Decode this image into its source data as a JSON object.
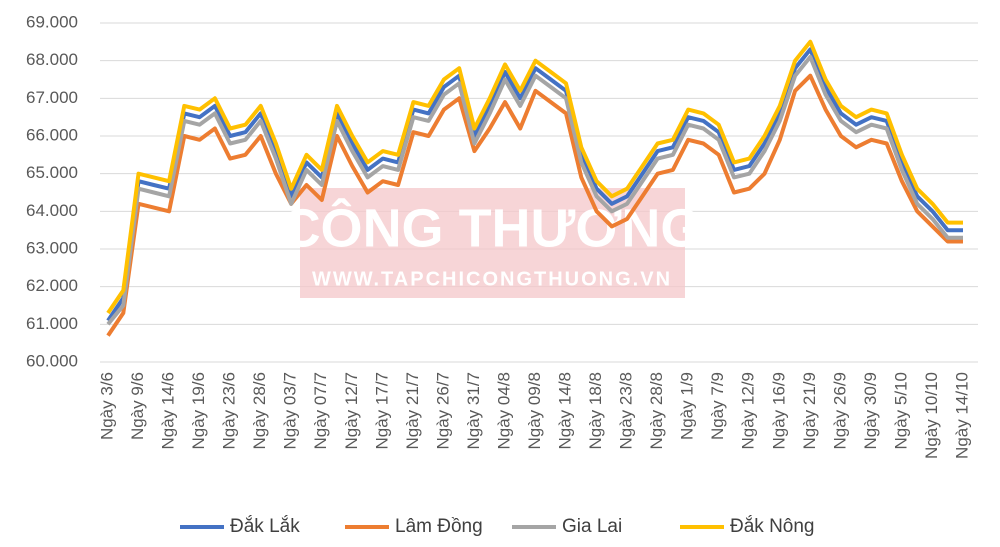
{
  "chart_data": {
    "type": "line",
    "watermark": {
      "title": "CÔNG THƯƠNG",
      "url": "WWW.TAPCHICONGTHUONG.VN"
    },
    "categories": [
      "Ngày 3/6",
      null,
      "Ngày 9/6",
      null,
      "Ngày 14/6",
      null,
      "Ngày 19/6",
      null,
      "Ngày 23/6",
      null,
      "Ngày 28/6",
      null,
      "Ngày 03/7",
      null,
      "Ngày 07/7",
      null,
      "Ngày 12/7",
      null,
      "Ngày 17/7",
      null,
      "Ngày 21/7",
      null,
      "Ngày 26/7",
      null,
      "Ngày 31/7",
      null,
      "Ngày 04/8",
      null,
      "Ngày 09/8",
      null,
      "Ngày 14/8",
      null,
      "Ngày 18/8",
      null,
      "Ngày 23/8",
      null,
      "Ngày 28/8",
      null,
      "Ngày 1/9",
      null,
      "Ngày 7/9",
      null,
      "Ngày 12/9",
      null,
      "Ngày 16/9",
      null,
      "Ngày 21/9",
      null,
      "Ngày 26/9",
      null,
      "Ngày 30/9",
      null,
      "Ngày 5/10",
      null,
      "Ngày 10/10",
      null,
      "Ngày 14/10"
    ],
    "series": [
      {
        "name": "Đắk Lắk",
        "color": "#4472c4",
        "values": [
          61.1,
          61.7,
          64.8,
          64.7,
          64.6,
          66.6,
          66.5,
          66.8,
          66.0,
          66.1,
          66.6,
          65.6,
          64.4,
          65.3,
          64.9,
          66.6,
          65.8,
          65.1,
          65.4,
          65.3,
          66.7,
          66.6,
          67.3,
          67.6,
          66.0,
          66.8,
          67.7,
          67.0,
          67.8,
          67.5,
          67.2,
          65.5,
          64.6,
          64.2,
          64.4,
          65.0,
          65.6,
          65.7,
          66.5,
          66.4,
          66.1,
          65.1,
          65.2,
          65.8,
          66.6,
          67.8,
          68.3,
          67.3,
          66.6,
          66.3,
          66.5,
          66.4,
          65.3,
          64.4,
          64.0,
          63.5,
          63.5
        ]
      },
      {
        "name": "Lâm Đồng",
        "color": "#ed7d31",
        "values": [
          60.7,
          61.3,
          64.2,
          64.1,
          64.0,
          66.0,
          65.9,
          66.2,
          65.4,
          65.5,
          66.0,
          65.0,
          64.2,
          64.7,
          64.3,
          66.0,
          65.2,
          64.5,
          64.8,
          64.7,
          66.1,
          66.0,
          66.7,
          67.0,
          65.6,
          66.2,
          66.9,
          66.2,
          67.2,
          66.9,
          66.6,
          64.9,
          64.0,
          63.6,
          63.8,
          64.4,
          65.0,
          65.1,
          65.9,
          65.8,
          65.5,
          64.5,
          64.6,
          65.0,
          65.9,
          67.2,
          67.6,
          66.7,
          66.0,
          65.7,
          65.9,
          65.8,
          64.8,
          64.0,
          63.6,
          63.2,
          63.2
        ]
      },
      {
        "name": "Gia Lai",
        "color": "#a5a5a5",
        "values": [
          61.0,
          61.5,
          64.6,
          64.5,
          64.4,
          66.4,
          66.3,
          66.6,
          65.8,
          65.9,
          66.4,
          65.4,
          64.2,
          65.1,
          64.7,
          66.4,
          65.6,
          64.9,
          65.2,
          65.1,
          66.5,
          66.4,
          67.1,
          67.4,
          65.8,
          66.6,
          67.5,
          66.8,
          67.6,
          67.3,
          67.0,
          65.3,
          64.4,
          64.0,
          64.2,
          64.8,
          65.4,
          65.5,
          66.3,
          66.2,
          65.9,
          64.9,
          65.0,
          65.6,
          66.4,
          67.6,
          68.1,
          67.1,
          66.4,
          66.1,
          66.3,
          66.2,
          65.1,
          64.2,
          63.8,
          63.3,
          63.3
        ]
      },
      {
        "name": "Đắk Nông",
        "color": "#ffc000",
        "values": [
          61.3,
          61.9,
          65.0,
          64.9,
          64.8,
          66.8,
          66.7,
          67.0,
          66.2,
          66.3,
          66.8,
          65.8,
          64.6,
          65.5,
          65.1,
          66.8,
          66.0,
          65.3,
          65.6,
          65.5,
          66.9,
          66.8,
          67.5,
          67.8,
          66.2,
          67.0,
          67.9,
          67.2,
          68.0,
          67.7,
          67.4,
          65.7,
          64.8,
          64.4,
          64.6,
          65.2,
          65.8,
          65.9,
          66.7,
          66.6,
          66.3,
          65.3,
          65.4,
          66.0,
          66.8,
          68.0,
          68.5,
          67.5,
          66.8,
          66.5,
          66.7,
          66.6,
          65.5,
          64.6,
          64.2,
          63.7,
          63.7
        ]
      }
    ],
    "ylim": [
      60,
      69
    ],
    "yticks": [
      {
        "value": 60,
        "label": "60.000"
      },
      {
        "value": 61,
        "label": "61.000"
      },
      {
        "value": 62,
        "label": "62.000"
      },
      {
        "value": 63,
        "label": "63.000"
      },
      {
        "value": 64,
        "label": "64.000"
      },
      {
        "value": 65,
        "label": "65.000"
      },
      {
        "value": 66,
        "label": "66.000"
      },
      {
        "value": 67,
        "label": "67.000"
      },
      {
        "value": 68,
        "label": "68.000"
      },
      {
        "value": 69,
        "label": "69.000"
      }
    ],
    "grid": true,
    "legend": "bottom"
  }
}
